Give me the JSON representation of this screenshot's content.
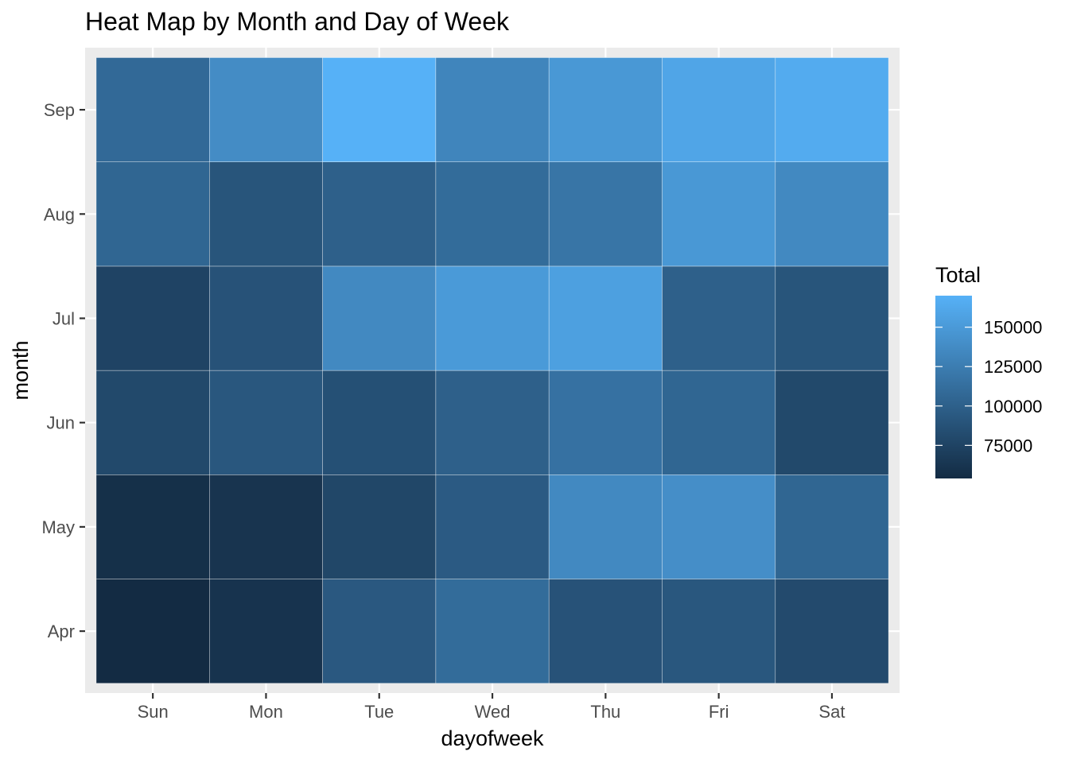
{
  "chart_data": {
    "type": "heatmap",
    "title": "Heat Map by Month and Day of Week",
    "xlabel": "dayofweek",
    "ylabel": "month",
    "x_categories": [
      "Sun",
      "Mon",
      "Tue",
      "Wed",
      "Thu",
      "Fri",
      "Sat"
    ],
    "y_categories": [
      "Apr",
      "May",
      "Jun",
      "Jul",
      "Aug",
      "Sep"
    ],
    "values": [
      [
        54000,
        61000,
        93000,
        110000,
        88000,
        92000,
        81000
      ],
      [
        58000,
        62000,
        78000,
        95000,
        135000,
        140000,
        105000
      ],
      [
        80000,
        92000,
        86000,
        100000,
        115000,
        105000,
        80000
      ],
      [
        75000,
        88000,
        135000,
        150000,
        155000,
        100000,
        90000
      ],
      [
        105000,
        90000,
        100000,
        110000,
        118000,
        148000,
        135000
      ],
      [
        108000,
        138000,
        170000,
        132000,
        148000,
        160000,
        165000
      ]
    ],
    "legend": {
      "title": "Total",
      "breaks": [
        75000,
        100000,
        125000,
        150000
      ],
      "break_labels": [
        "75000",
        "100000",
        "125000",
        "150000"
      ],
      "range": [
        54000,
        170000
      ],
      "low_color": "#132b43",
      "high_color": "#56b1f7",
      "position": "right"
    },
    "panel_background": "#ebebeb",
    "grid": true
  }
}
